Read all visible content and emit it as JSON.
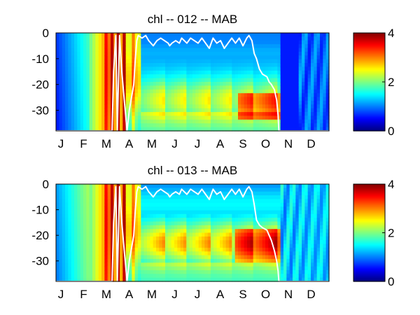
{
  "chart_data": [
    {
      "type": "heatmap",
      "title": "chl -- 012 -- MAB",
      "x_tick_labels": [
        "J",
        "F",
        "M",
        "A",
        "M",
        "J",
        "J",
        "A",
        "S",
        "O",
        "N",
        "D"
      ],
      "y_ticks": [
        0,
        -10,
        -20,
        -30
      ],
      "ylim": [
        -38,
        0
      ],
      "xlim": [
        0,
        365
      ],
      "colorbar": {
        "min": 0,
        "max": 4,
        "ticks": [
          0,
          2,
          4
        ],
        "colormap": "jet"
      },
      "mixed_layer_line_color": "#ffffff",
      "mixed_layer_depth": [
        [
          0,
          -38
        ],
        [
          75,
          -38
        ],
        [
          77,
          -15
        ],
        [
          80,
          -1
        ],
        [
          82,
          -38
        ],
        [
          85,
          -1
        ],
        [
          88,
          -15
        ],
        [
          91,
          -25
        ],
        [
          95,
          -38
        ],
        [
          98,
          -30
        ],
        [
          101,
          -25
        ],
        [
          104,
          -20
        ],
        [
          106,
          -10
        ],
        [
          108,
          -3
        ],
        [
          110,
          -1
        ],
        [
          115,
          -2
        ],
        [
          120,
          -1
        ],
        [
          124,
          -3
        ],
        [
          130,
          -5
        ],
        [
          135,
          -3
        ],
        [
          140,
          -2
        ],
        [
          150,
          -4
        ],
        [
          152,
          -5
        ],
        [
          155,
          -4
        ],
        [
          160,
          -3
        ],
        [
          165,
          -4
        ],
        [
          168,
          -2
        ],
        [
          175,
          -4
        ],
        [
          180,
          -2
        ],
        [
          190,
          -4
        ],
        [
          195,
          -2
        ],
        [
          200,
          -4
        ],
        [
          205,
          -6
        ],
        [
          210,
          -2
        ],
        [
          215,
          -4
        ],
        [
          220,
          -3
        ],
        [
          225,
          -6
        ],
        [
          230,
          -4
        ],
        [
          235,
          -2
        ],
        [
          240,
          -4
        ],
        [
          245,
          -2
        ],
        [
          250,
          -5
        ],
        [
          255,
          -2
        ],
        [
          258,
          -1
        ],
        [
          262,
          -3
        ],
        [
          265,
          -8
        ],
        [
          268,
          -10
        ],
        [
          272,
          -14
        ],
        [
          276,
          -16
        ],
        [
          282,
          -17
        ],
        [
          285,
          -19
        ],
        [
          288,
          -20
        ],
        [
          292,
          -22
        ],
        [
          295,
          -26
        ],
        [
          297,
          -32
        ],
        [
          298,
          -38
        ],
        [
          365,
          -38
        ]
      ],
      "features": {
        "spring_bloom_x": [
          65,
          90
        ],
        "summer_subsurface_max_depth": -24,
        "autumn_patch": {
          "x": [
            245,
            300
          ],
          "y": [
            -33,
            -24
          ]
        }
      }
    },
    {
      "type": "heatmap",
      "title": "chl -- 013 -- MAB",
      "x_tick_labels": [
        "J",
        "F",
        "M",
        "A",
        "M",
        "J",
        "J",
        "A",
        "S",
        "O",
        "N",
        "D"
      ],
      "y_ticks": [
        0,
        -10,
        -20,
        -30
      ],
      "ylim": [
        -38,
        0
      ],
      "xlim": [
        0,
        365
      ],
      "colorbar": {
        "min": 0,
        "max": 4,
        "ticks": [
          0,
          2,
          4
        ],
        "colormap": "jet"
      },
      "mixed_layer_line_color": "#ffffff",
      "mixed_layer_depth": [
        [
          0,
          -38
        ],
        [
          75,
          -38
        ],
        [
          77,
          -15
        ],
        [
          80,
          -1
        ],
        [
          82,
          -38
        ],
        [
          85,
          -1
        ],
        [
          88,
          -15
        ],
        [
          91,
          -25
        ],
        [
          95,
          -38
        ],
        [
          98,
          -30
        ],
        [
          101,
          -25
        ],
        [
          104,
          -20
        ],
        [
          106,
          -10
        ],
        [
          108,
          -3
        ],
        [
          110,
          -1
        ],
        [
          115,
          -2
        ],
        [
          120,
          -1
        ],
        [
          124,
          -3
        ],
        [
          130,
          -5
        ],
        [
          135,
          -3
        ],
        [
          140,
          -2
        ],
        [
          150,
          -4
        ],
        [
          152,
          -5
        ],
        [
          155,
          -4
        ],
        [
          160,
          -3
        ],
        [
          165,
          -4
        ],
        [
          168,
          -2
        ],
        [
          175,
          -4
        ],
        [
          180,
          -2
        ],
        [
          190,
          -4
        ],
        [
          195,
          -2
        ],
        [
          200,
          -4
        ],
        [
          205,
          -6
        ],
        [
          210,
          -2
        ],
        [
          215,
          -4
        ],
        [
          220,
          -3
        ],
        [
          225,
          -6
        ],
        [
          230,
          -4
        ],
        [
          235,
          -2
        ],
        [
          240,
          -4
        ],
        [
          245,
          -2
        ],
        [
          250,
          -5
        ],
        [
          255,
          -2
        ],
        [
          258,
          -1
        ],
        [
          262,
          -3
        ],
        [
          265,
          -8
        ],
        [
          268,
          -14
        ],
        [
          272,
          -16
        ],
        [
          276,
          -17
        ],
        [
          282,
          -18
        ],
        [
          285,
          -20
        ],
        [
          288,
          -22
        ],
        [
          292,
          -26
        ],
        [
          295,
          -30
        ],
        [
          297,
          -34
        ],
        [
          298,
          -38
        ],
        [
          365,
          -38
        ]
      ],
      "features": {
        "spring_bloom_x": [
          65,
          90
        ],
        "summer_subsurface_max_depth": -21,
        "autumn_patch": {
          "x": [
            240,
            300
          ],
          "y": [
            -30,
            -18
          ]
        }
      }
    }
  ]
}
